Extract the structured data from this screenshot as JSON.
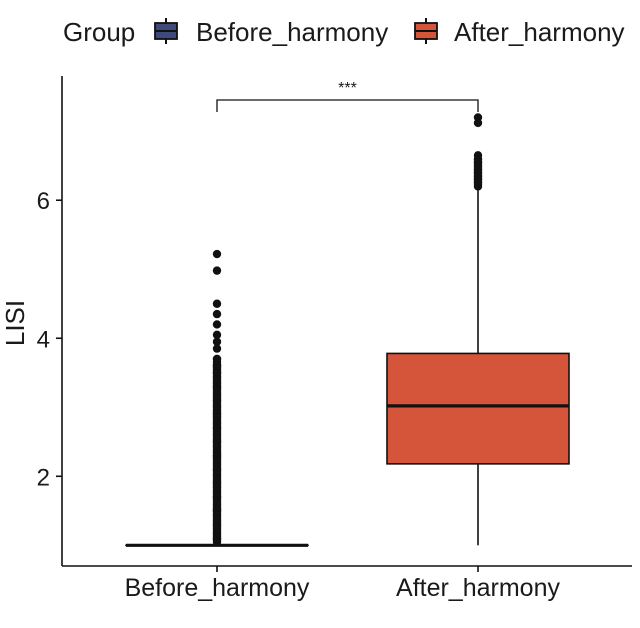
{
  "chart_data": {
    "type": "boxplot",
    "legend": {
      "title": "Group",
      "position": "top",
      "entries": [
        "Before_harmony",
        "After_harmony"
      ]
    },
    "ylabel": "LISI",
    "xlabel": "",
    "ylim": [
      0.7,
      7.8
    ],
    "yticks": [
      2,
      4,
      6
    ],
    "grid": false,
    "categories": [
      "Before_harmony",
      "After_harmony"
    ],
    "series": [
      {
        "name": "Before_harmony",
        "color": "#3e4a7a",
        "min": 1.0,
        "q1": 1.0,
        "median": 1.0,
        "q3": 1.0,
        "max": 1.0,
        "outliers": [
          1.1,
          1.3,
          1.5,
          1.7,
          1.9,
          2.1,
          2.3,
          2.5,
          2.7,
          2.9,
          3.1,
          3.3,
          3.5,
          3.6,
          3.7,
          3.85,
          3.95,
          4.05,
          4.2,
          4.35,
          4.5,
          4.98,
          5.22
        ]
      },
      {
        "name": "After_harmony",
        "color": "#d4553a",
        "min": 1.0,
        "q1": 2.18,
        "median": 3.02,
        "q3": 3.78,
        "max": 6.2,
        "outliers": [
          6.25,
          6.3,
          6.35,
          6.4,
          6.45,
          6.5,
          6.55,
          6.6,
          6.65,
          7.12,
          7.2
        ]
      }
    ],
    "annotations": [
      {
        "type": "significance",
        "text": "***",
        "between": [
          "Before_harmony",
          "After_harmony"
        ],
        "y": 6.6
      }
    ]
  }
}
